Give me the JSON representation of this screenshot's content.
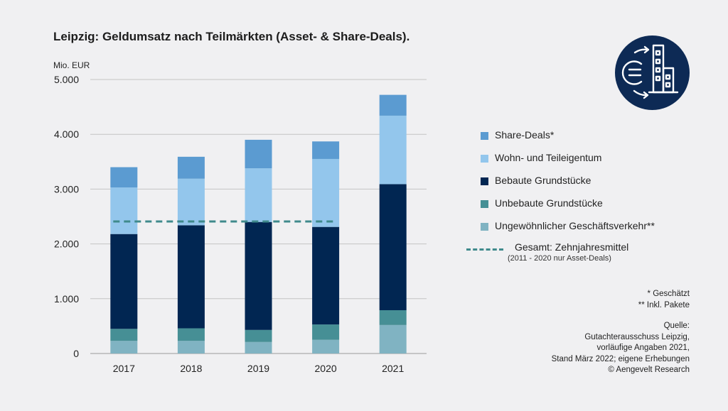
{
  "title": "Leipzig: Geldumsatz nach Teilmärkten (Asset- & Share-Deals).",
  "colors": {
    "share_deals": "#5b9bd1",
    "wohn": "#93c6ec",
    "bebaute": "#012652",
    "unbebaute": "#468f95",
    "ungewoehnlich": "#80b3c2",
    "mittel": "#3f8a8c",
    "logo_bg": "#0d2a55"
  },
  "chart_data": {
    "type": "bar",
    "stacked": true,
    "unit_label": "Mio. EUR",
    "categories": [
      "2017",
      "2018",
      "2019",
      "2020",
      "2021"
    ],
    "y_ticks": [
      "0",
      "1.000",
      "2.000",
      "3.000",
      "4.000",
      "5.000"
    ],
    "ylim": [
      0,
      5000
    ],
    "grid": true,
    "series": [
      {
        "name": "Ungewöhnlicher Geschäftsverkehr**",
        "key": "ungewoehnlich",
        "values": [
          230,
          230,
          210,
          250,
          520
        ]
      },
      {
        "name": "Unbebaute Grundstücke",
        "key": "unbebaute",
        "values": [
          220,
          230,
          220,
          280,
          270
        ]
      },
      {
        "name": "Bebaute Grundstücke",
        "key": "bebaute",
        "values": [
          1730,
          1880,
          1970,
          1780,
          2300
        ]
      },
      {
        "name": "Wohn- und Teileigentum",
        "key": "wohn",
        "values": [
          850,
          850,
          980,
          1240,
          1250
        ]
      },
      {
        "name": "Share-Deals*",
        "key": "share_deals",
        "values": [
          370,
          400,
          520,
          320,
          380
        ]
      }
    ],
    "average_line": {
      "name": "Gesamt: Zehnjahresmittel",
      "note": "(2011 - 2020 nur Asset-Deals)",
      "value": 2410,
      "from": "2017",
      "to": "2020"
    },
    "legend_position": "right"
  },
  "legend": [
    {
      "label": "Share-Deals*",
      "key": "share_deals"
    },
    {
      "label": "Wohn- und Teileigentum",
      "key": "wohn"
    },
    {
      "label": "Bebaute Grundstücke",
      "key": "bebaute"
    },
    {
      "label": "Unbebaute Grundstücke",
      "key": "unbebaute"
    },
    {
      "label": "Ungewöhnlicher Geschäftsverkehr**",
      "key": "ungewoehnlich"
    }
  ],
  "legend_line": {
    "label": "Gesamt: Zehnjahresmittel",
    "sub": "(2011 - 2020 nur Asset-Deals)"
  },
  "notes": [
    "* Geschätzt",
    "** Inkl. Pakete"
  ],
  "source": [
    "Quelle:",
    "Gutachterausschuss Leipzig,",
    "vorläufige Angaben 2021,",
    "Stand März 2022; eigene Erhebungen",
    "© Aengevelt Research"
  ],
  "logo_icon": "euro-building-icon"
}
